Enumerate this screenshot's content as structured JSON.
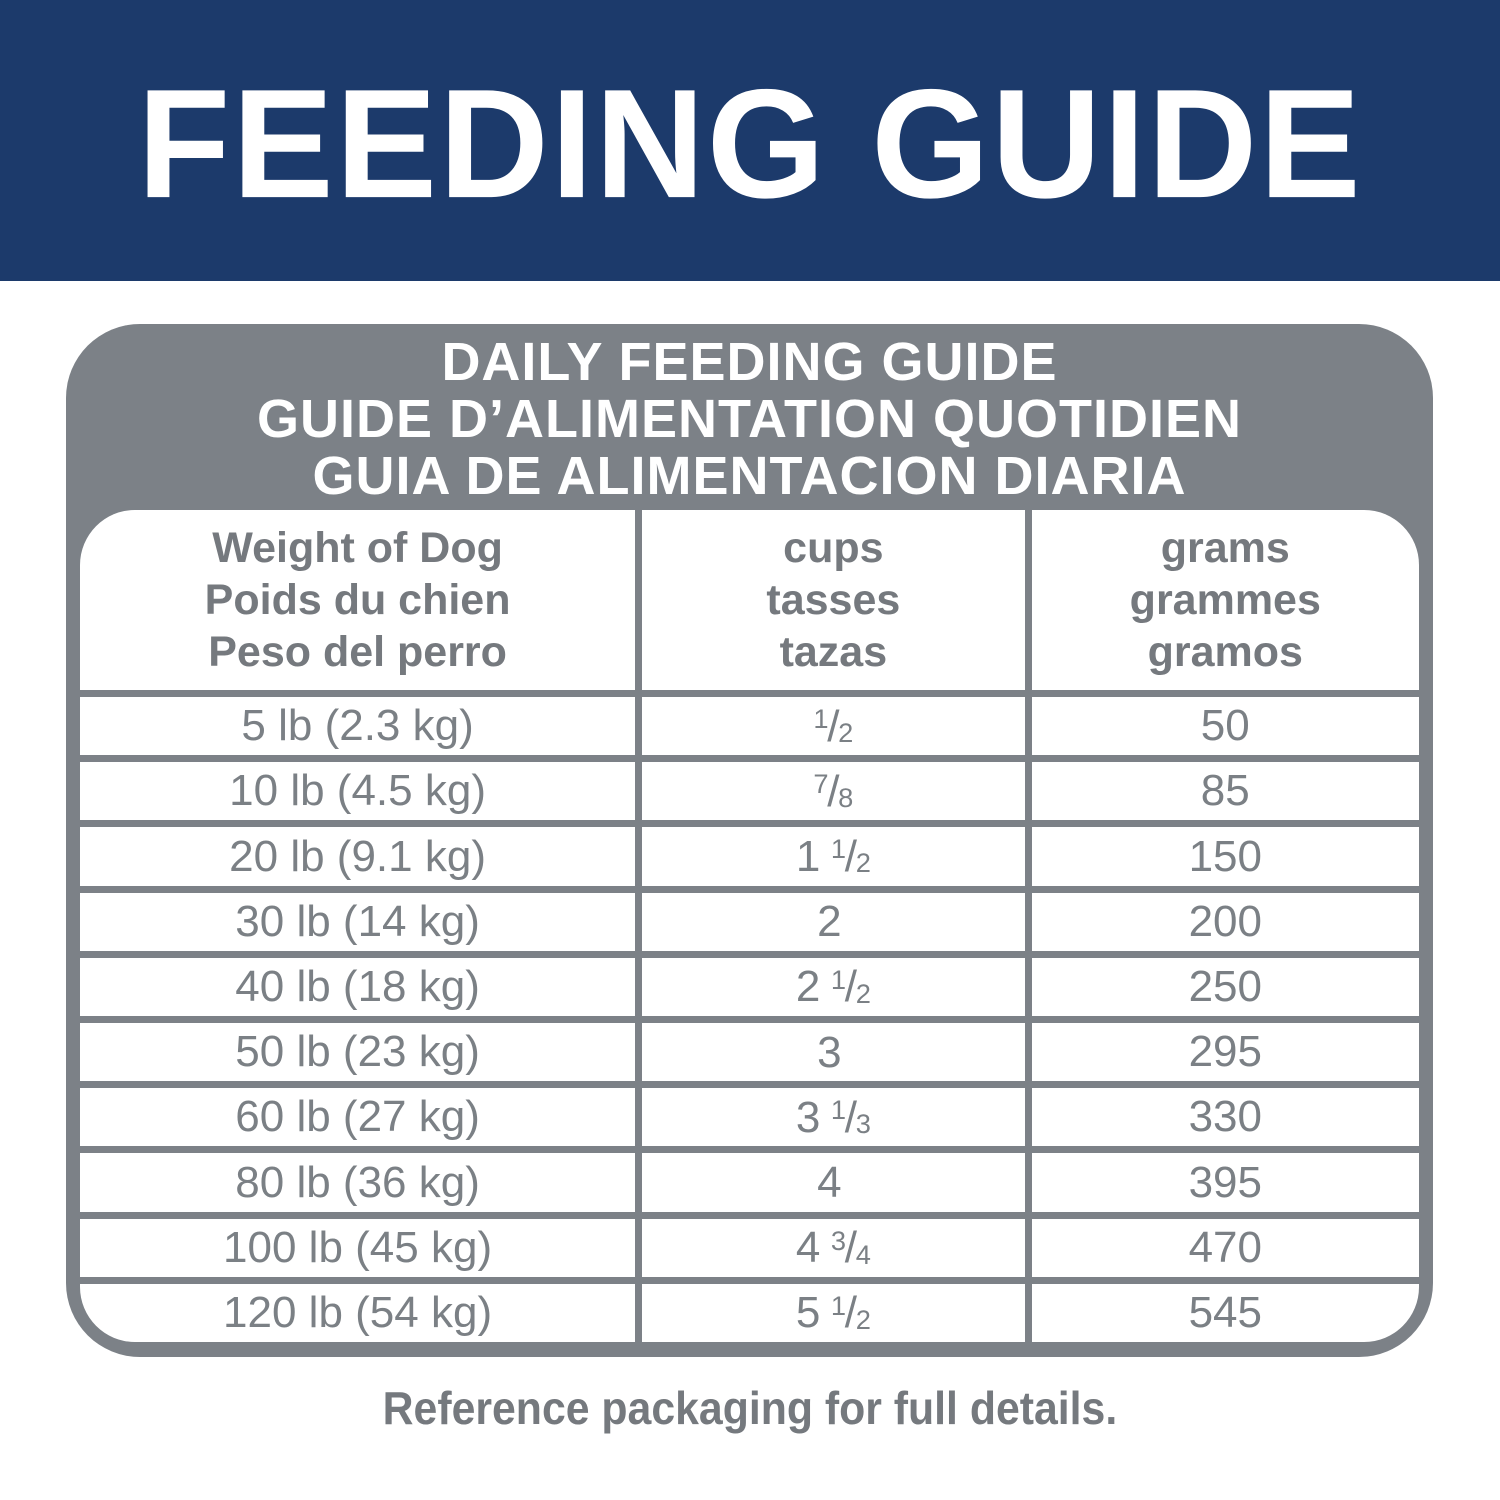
{
  "banner": {
    "title": "FEEDING GUIDE"
  },
  "panel": {
    "heading_lines": [
      "DAILY FEEDING GUIDE",
      "GUIDE D’ALIMENTATION QUOTIDIEN",
      "GUIA DE ALIMENTACION DIARIA"
    ]
  },
  "table": {
    "columns": [
      {
        "lines": [
          "Weight of Dog",
          "Poids du chien",
          "Peso del perro"
        ]
      },
      {
        "lines": [
          "cups",
          "tasses",
          "tazas"
        ]
      },
      {
        "lines": [
          "grams",
          "grammes",
          "gramos"
        ]
      }
    ],
    "rows": [
      {
        "weight": "5 lb (2.3 kg)",
        "cups": {
          "num": "1",
          "slash": "/",
          "den": "2"
        },
        "grams": "50"
      },
      {
        "weight": "10 lb (4.5 kg)",
        "cups": {
          "num": "7",
          "slash": "/",
          "den": "8"
        },
        "grams": "85"
      },
      {
        "weight": "20 lb (9.1 kg)",
        "cups": {
          "whole": "1",
          "num": "1",
          "slash": "/",
          "den": "2"
        },
        "grams": "150"
      },
      {
        "weight": "30 lb (14 kg)",
        "cups": {
          "whole": "2"
        },
        "grams": "200"
      },
      {
        "weight": "40 lb (18 kg)",
        "cups": {
          "whole": "2",
          "num": "1",
          "slash": "/",
          "den": "2"
        },
        "grams": "250"
      },
      {
        "weight": "50 lb (23 kg)",
        "cups": {
          "whole": "3"
        },
        "grams": "295"
      },
      {
        "weight": "60 lb (27 kg)",
        "cups": {
          "whole": "3",
          "num": "1",
          "slash": "/",
          "den": "3"
        },
        "grams": "330"
      },
      {
        "weight": "80 lb (36 kg)",
        "cups": {
          "whole": "4"
        },
        "grams": "395"
      },
      {
        "weight": "100 lb (45 kg)",
        "cups": {
          "whole": "4",
          "num": "3",
          "slash": "/",
          "den": "4"
        },
        "grams": "470"
      },
      {
        "weight": "120 lb (54 kg)",
        "cups": {
          "whole": "5",
          "num": "1",
          "slash": "/",
          "den": "2"
        },
        "grams": "545"
      }
    ]
  },
  "footer": {
    "note": "Reference packaging for full details."
  },
  "colors": {
    "banner_navy": "#1c3a6b",
    "panel_gray": "#7c8187",
    "table_text_gray": "#7b8085",
    "text_white": "#ffffff"
  },
  "chart_data": {
    "type": "table",
    "title": "DAILY FEEDING GUIDE",
    "columns": [
      "Weight of Dog",
      "cups",
      "grams"
    ],
    "rows": [
      [
        "5 lb (2.3 kg)",
        "1/2",
        50
      ],
      [
        "10 lb (4.5 kg)",
        "7/8",
        85
      ],
      [
        "20 lb (9.1 kg)",
        "1 1/2",
        150
      ],
      [
        "30 lb (14 kg)",
        "2",
        200
      ],
      [
        "40 lb (18 kg)",
        "2 1/2",
        250
      ],
      [
        "50 lb (23 kg)",
        "3",
        295
      ],
      [
        "60 lb (27 kg)",
        "3 1/3",
        330
      ],
      [
        "80 lb (36 kg)",
        "4",
        395
      ],
      [
        "100 lb (45 kg)",
        "4 3/4",
        470
      ],
      [
        "120 lb (54 kg)",
        "5 1/2",
        545
      ]
    ]
  }
}
